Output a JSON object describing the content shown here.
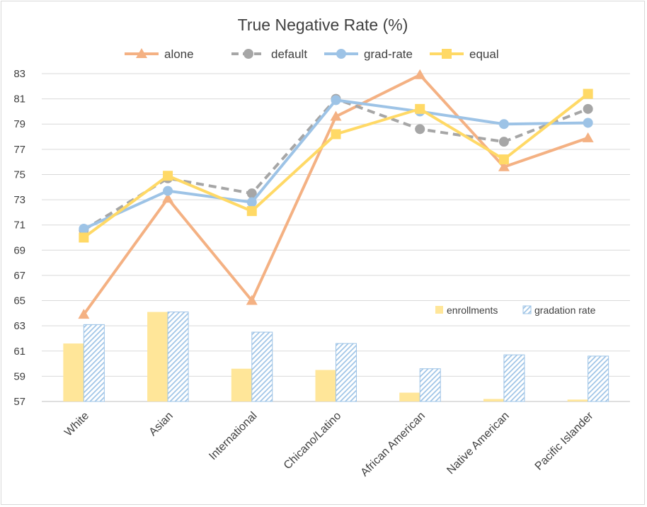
{
  "chart_data": {
    "type": "line",
    "title": "True Negative Rate (%)",
    "xlabel": "",
    "ylabel": "",
    "ylim": [
      57,
      83
    ],
    "yticks": [
      57,
      59,
      61,
      63,
      65,
      67,
      69,
      71,
      73,
      75,
      77,
      79,
      81,
      83
    ],
    "grid": true,
    "legend_position": "top",
    "categories": [
      "White",
      "Asian",
      "International",
      "Chicano/Latino",
      "African American",
      "Native American",
      "Pacific Islander"
    ],
    "series": [
      {
        "name": "alone",
        "color": "#F4B183",
        "dash": "solid",
        "marker": "triangle",
        "values": [
          63.9,
          73.1,
          65.0,
          79.6,
          82.9,
          75.6,
          77.9
        ]
      },
      {
        "name": "default",
        "color": "#A6A6A6",
        "dash": "dashed",
        "marker": "circle",
        "values": [
          70.6,
          74.7,
          73.5,
          81.0,
          78.6,
          77.6,
          80.2
        ]
      },
      {
        "name": "grad-rate",
        "color": "#9DC3E6",
        "dash": "solid",
        "marker": "circle",
        "values": [
          70.7,
          73.7,
          72.8,
          80.9,
          80.0,
          79.0,
          79.1
        ]
      },
      {
        "name": "equal",
        "color": "#FFD966",
        "dash": "solid",
        "marker": "square",
        "values": [
          70.0,
          74.9,
          72.1,
          78.2,
          80.2,
          76.2,
          81.4
        ]
      }
    ],
    "bars": {
      "legend_position": "inside-lower-right",
      "series": [
        {
          "name": "enrollments",
          "color": "#FFE699",
          "pattern": "solid",
          "values": [
            61.6,
            64.1,
            59.6,
            59.5,
            57.7,
            57.2,
            57.15
          ]
        },
        {
          "name": "gradation rate",
          "color": "#9DC3E6",
          "pattern": "hatched",
          "values": [
            63.1,
            64.1,
            62.5,
            61.6,
            59.6,
            60.7,
            60.6
          ]
        }
      ]
    }
  }
}
